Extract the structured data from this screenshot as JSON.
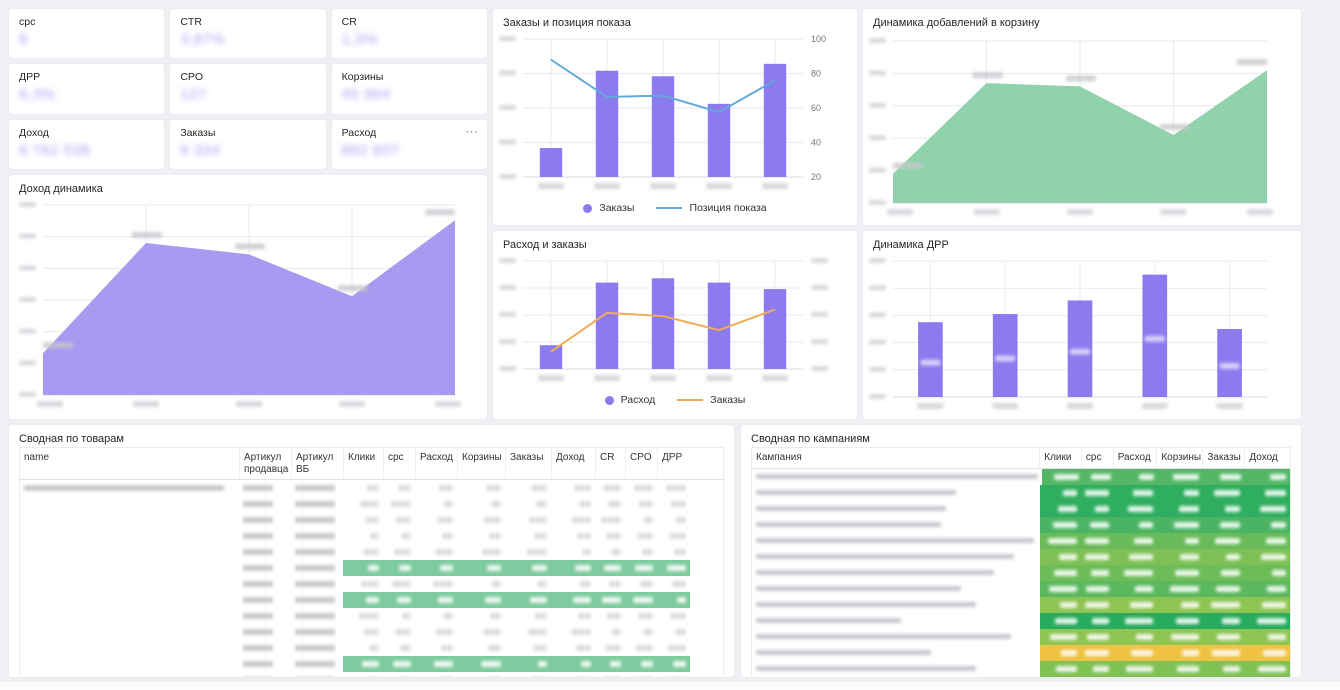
{
  "colors": {
    "accent_purple": "#8b7bee",
    "purple_area": "#a89af0",
    "green_area": "#90d2ab",
    "blue_line": "#64a8dc",
    "orange_line": "#f0ad55",
    "kpi_value": "#a99af2",
    "grid_line": "#e9e9ec",
    "highlight_green": "#7ecb9f",
    "heat_yellow": "#f0c243"
  },
  "kpi_cards": [
    {
      "label": "cpc",
      "value": "8",
      "redacted": true,
      "menu": false
    },
    {
      "label": "CTR",
      "value": "3,87%",
      "redacted": true,
      "menu": false
    },
    {
      "label": "CR",
      "value": "1,3%",
      "redacted": true,
      "menu": false
    },
    {
      "label": "ДРР",
      "value": "6,3%",
      "redacted": true,
      "menu": false
    },
    {
      "label": "CPO",
      "value": "127",
      "redacted": true,
      "menu": false
    },
    {
      "label": "Корзины",
      "value": "45 964",
      "redacted": true,
      "menu": false
    },
    {
      "label": "Доход",
      "value": "6 762 538",
      "redacted": true,
      "menu": false
    },
    {
      "label": "Заказы",
      "value": "6 334",
      "redacted": true,
      "menu": false
    },
    {
      "label": "Расход",
      "value": "862 837",
      "redacted": true,
      "menu": true
    }
  ],
  "chart_data": [
    {
      "key": "orders_position",
      "type": "bar+line",
      "title": "Заказы и позиция показа",
      "num_categories": 5,
      "x_labels_redacted": true,
      "left_axis_ticks_redacted": true,
      "right_axis_ticks": [
        "100",
        "80",
        "60",
        "40",
        "20"
      ],
      "series": [
        {
          "name": "Заказы",
          "type": "bar",
          "axis": "left",
          "values_relative_pct": [
            21,
            77,
            73,
            53,
            82
          ]
        },
        {
          "name": "Позиция показа",
          "type": "line",
          "axis": "right",
          "values_relative_pct": [
            85,
            58,
            59,
            47,
            70
          ]
        }
      ],
      "legend": [
        {
          "label": "Заказы"
        },
        {
          "label": "Позиция показа"
        }
      ]
    },
    {
      "key": "cart_additions",
      "type": "area",
      "title": "Динамика добавлений в корзину",
      "num_points": 5,
      "x_labels_redacted": true,
      "point_labels_redacted": true,
      "values_relative_pct": [
        18,
        74,
        72,
        42,
        82
      ]
    },
    {
      "key": "revenue_dynamics",
      "type": "area",
      "title": "Доход динамика",
      "num_points": 5,
      "x_labels_redacted": true,
      "point_labels_redacted": true,
      "values_relative_pct": [
        22,
        80,
        74,
        52,
        92
      ]
    },
    {
      "key": "expense_orders",
      "type": "bar+line",
      "title": "Расход и заказы",
      "num_categories": 5,
      "x_labels_redacted": true,
      "left_axis_ticks_redacted": true,
      "right_axis_ticks_redacted": true,
      "series": [
        {
          "name": "Расход",
          "type": "bar",
          "axis": "left",
          "values_relative_pct": [
            22,
            80,
            84,
            80,
            74
          ]
        },
        {
          "name": "Заказы",
          "type": "line",
          "axis": "right",
          "values_relative_pct": [
            16,
            52,
            49,
            36,
            55
          ]
        }
      ],
      "legend": [
        {
          "label": "Расход"
        },
        {
          "label": "Заказы"
        }
      ]
    },
    {
      "key": "drr_dynamics",
      "type": "bar",
      "title": "Динамика ДРР",
      "num_categories": 5,
      "x_labels_redacted": true,
      "bar_labels_redacted": true,
      "values_relative_pct": [
        55,
        61,
        71,
        90,
        50
      ]
    }
  ],
  "tables": {
    "products": {
      "title": "Сводная по товарам",
      "columns": [
        "name",
        "Артикул продавца",
        "Артикул ВБ",
        "Клики",
        "cpc",
        "Расход",
        "Корзины",
        "Заказы",
        "Доход",
        "CR",
        "CPO",
        "ДРР"
      ],
      "values_redacted": true,
      "num_rows": 13,
      "highlighted_row_indices": [
        5,
        7,
        11
      ],
      "first_row_has_long_name": true
    },
    "campaigns": {
      "title": "Сводная по кампаниям",
      "columns": [
        "Кампания",
        "Клики",
        "cpc",
        "Расход",
        "Корзины",
        "Заказы",
        "Доход"
      ],
      "values_redacted": true,
      "num_rows": 13,
      "row_heat_colors": [
        "#54b766",
        "#2fae5f",
        "#30ae5f",
        "#4bb464",
        "#68bb58",
        "#7ec056",
        "#6cbc58",
        "#5cb85e",
        "#8ec452",
        "#27ab5e",
        "#8ec452",
        "#f0c243",
        "#80c154"
      ],
      "name_blob_widths": [
        282,
        200,
        190,
        185,
        278,
        258,
        238,
        205,
        220,
        145,
        255,
        175,
        220
      ],
      "partial_last_row_color": "#2fae5f"
    }
  }
}
